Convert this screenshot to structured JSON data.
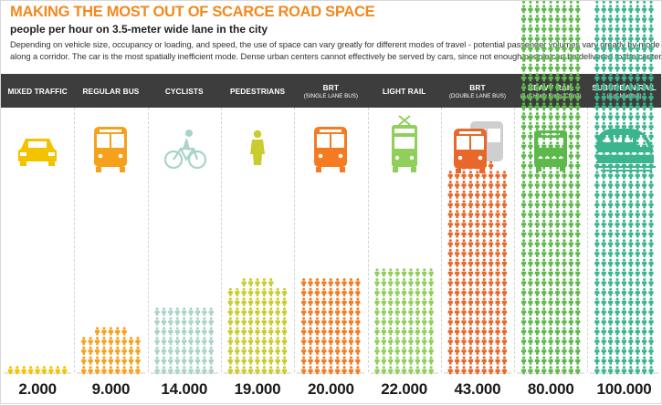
{
  "header": {
    "title": "MAKING THE MOST OUT OF SCARCE ROAD SPACE",
    "subtitle": "people per hour on 3.5-meter wide lane in the city",
    "description_line1": "Depending on vehicle size, occupancy or loading, and speed, the use of space can vary greatly for different modes of travel - potential passenger volumes vary greatly by mode",
    "description_line2": "along a corridor. The car is the most spatially inefficient mode. Dense urban centers cannot effectively be served by cars, since not enough people can be delivered to the center."
  },
  "colors": {
    "title": "#f2891f",
    "header_bar": "#3d3d3d",
    "mixed_traffic": "#f3c300",
    "regular_bus": "#f5a11c",
    "cyclists": "#a8d5c4",
    "pedestrians": "#c9cc2c",
    "brt_single": "#f47b20",
    "light_rail": "#8fcf5a",
    "brt_double": "#e8682c",
    "heavy_rail": "#5db94c",
    "suburban_rail": "#3bb58e"
  },
  "chart_data": {
    "type": "bar",
    "title": "MAKING THE MOST OUT OF SCARCE ROAD SPACE",
    "subtitle": "people per hour on 3.5-meter wide lane in the city",
    "ylabel": "",
    "categories": [
      "MIXED TRAFFIC",
      "REGULAR BUS",
      "CYCLISTS",
      "PEDESTRIANS",
      "BRT",
      "LIGHT RAIL",
      "BRT",
      "HEAVY RAIL",
      "SUBURBAN RAIL"
    ],
    "subcategories": [
      "",
      "",
      "",
      "",
      "(SINGLE LANE BUS)",
      "",
      "(DOUBLE LANE BUS)",
      "(e.g. Hong Kong, China)",
      "(e.g. Mumbai)"
    ],
    "values": [
      2000,
      9000,
      14000,
      19000,
      20000,
      22000,
      43000,
      80000,
      100000
    ],
    "value_labels": [
      "2.000",
      "9.000",
      "14.000",
      "19.000",
      "20.000",
      "22.000",
      "43.000",
      "80.000",
      "100.000"
    ],
    "icons": [
      "car-icon",
      "bus-icon",
      "bicycle-icon",
      "pedestrian-icon",
      "bus-icon",
      "tram-icon",
      "double-bus-icon",
      "train-icon",
      "high-speed-train-icon"
    ],
    "grid": false,
    "legend": "none"
  }
}
